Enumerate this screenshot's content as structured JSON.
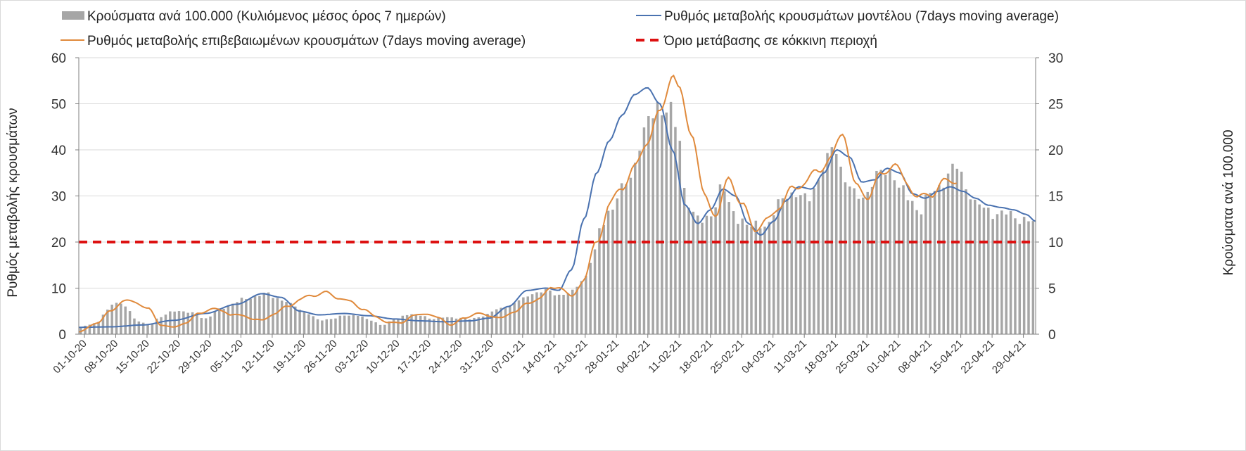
{
  "chart_data": {
    "type": "bar+line",
    "title": "",
    "legend": [
      {
        "key": "bars",
        "label": "Κρούσματα ανά 100.000 (Κυλιόμενος μέσος όρος 7 ημερών)",
        "color": "#a6a6a6"
      },
      {
        "key": "model",
        "label": "Ρυθμός μεταβολής κρουσμάτων μοντέλου (7days moving average)",
        "color": "#4a72b0"
      },
      {
        "key": "confirmed",
        "label": "Ρυθμός μεταβολής επιβεβαιωμένων κρουσμάτων (7days moving average)",
        "color": "#e08a3c"
      },
      {
        "key": "threshold",
        "label": "Όριο μετάβασης σε κόκκινη περιοχή",
        "color": "#dd1111"
      }
    ],
    "legend_placement": "top",
    "ylabel_left": "Ρυθμός μεταβολής κρουσμάτων",
    "ylabel_right": "Κρούσματα ανά 100.000",
    "ylim_left": [
      0,
      60
    ],
    "yticks_left": [
      "0",
      "10",
      "20",
      "30",
      "40",
      "50",
      "60"
    ],
    "ylim_right": [
      0,
      30
    ],
    "yticks_right": [
      "0",
      "5",
      "10",
      "15",
      "20",
      "25",
      "30"
    ],
    "grid": true,
    "x_tick_labels": [
      "01-10-20",
      "08-10-20",
      "15-10-20",
      "22-10-20",
      "29-10-20",
      "05-11-20",
      "12-11-20",
      "19-11-20",
      "26-11-20",
      "03-12-20",
      "10-12-20",
      "17-12-20",
      "24-12-20",
      "31-12-20",
      "07-01-21",
      "14-01-21",
      "21-01-21",
      "28-01-21",
      "04-02-21",
      "11-02-21",
      "18-02-21",
      "25-02-21",
      "04-03-21",
      "11-03-21",
      "18-03-21",
      "25-03-21",
      "01-04-21",
      "08-04-21",
      "15-04-21",
      "22-04-21",
      "29-04-21"
    ],
    "day_count": 214,
    "threshold_left": 20,
    "anchors_bars_right": [
      [
        0,
        0.8
      ],
      [
        5,
        1.2
      ],
      [
        8,
        2.5
      ],
      [
        11,
        3.4
      ],
      [
        14,
        3.2
      ],
      [
        18,
        1.4
      ],
      [
        22,
        1.0
      ],
      [
        25,
        1.8
      ],
      [
        30,
        2.6
      ],
      [
        35,
        2.3
      ],
      [
        40,
        1.7
      ],
      [
        44,
        2.7
      ],
      [
        48,
        3.3
      ],
      [
        52,
        3.8
      ],
      [
        56,
        4.2
      ],
      [
        59,
        4.4
      ],
      [
        62,
        4.0
      ],
      [
        65,
        3.6
      ],
      [
        68,
        3.0
      ],
      [
        72,
        2.3
      ],
      [
        76,
        1.5
      ],
      [
        80,
        1.7
      ],
      [
        84,
        2.0
      ],
      [
        88,
        2.1
      ],
      [
        92,
        1.5
      ],
      [
        96,
        1.0
      ],
      [
        100,
        1.6
      ],
      [
        104,
        2.2
      ],
      [
        108,
        2.0
      ],
      [
        112,
        1.7
      ],
      [
        116,
        1.8
      ],
      [
        120,
        1.8
      ],
      [
        124,
        1.6
      ],
      [
        128,
        2.0
      ],
      [
        132,
        2.6
      ],
      [
        136,
        3.1
      ],
      [
        140,
        3.7
      ],
      [
        144,
        4.5
      ],
      [
        148,
        4.7
      ],
      [
        152,
        4.3
      ],
      [
        156,
        4.5
      ],
      [
        160,
        6.0
      ],
      [
        163,
        8.5
      ],
      [
        166,
        12.0
      ],
      [
        169,
        14.0
      ],
      [
        172,
        15.5
      ],
      [
        175,
        17.0
      ],
      [
        178,
        21.0
      ],
      [
        181,
        23.0
      ],
      [
        184,
        25.0
      ],
      [
        187,
        24.5
      ],
      [
        190,
        22.0
      ],
      [
        192,
        16.0
      ],
      [
        195,
        13.0
      ],
      [
        198,
        12.0
      ],
      [
        201,
        13.5
      ],
      [
        204,
        16.0
      ],
      [
        207,
        13.5
      ],
      [
        210,
        12.5
      ],
      [
        213,
        11.5
      ],
      [
        216,
        12.0
      ],
      [
        219,
        12.0
      ],
      [
        222,
        14.0
      ],
      [
        225,
        15.5
      ],
      [
        228,
        15.0
      ],
      [
        231,
        14.5
      ],
      [
        234,
        16.5
      ],
      [
        237,
        18.5
      ],
      [
        240,
        20.5
      ],
      [
        243,
        17.0
      ],
      [
        246,
        15.0
      ],
      [
        249,
        15.0
      ],
      [
        252,
        16.5
      ],
      [
        255,
        17.5
      ],
      [
        258,
        18.0
      ],
      [
        261,
        15.5
      ],
      [
        264,
        14.5
      ],
      [
        267,
        13.5
      ],
      [
        270,
        15.0
      ],
      [
        273,
        16.0
      ],
      [
        276,
        17.5
      ],
      [
        279,
        18.0
      ],
      [
        282,
        16.0
      ],
      [
        285,
        14.0
      ],
      [
        288,
        13.5
      ],
      [
        291,
        13.2
      ],
      [
        294,
        13.0
      ],
      [
        297,
        12.8
      ],
      [
        300,
        12.5
      ],
      [
        303,
        12.0
      ]
    ],
    "anchors_model_left": [
      [
        0,
        1.5
      ],
      [
        10,
        1.6
      ],
      [
        20,
        2.0
      ],
      [
        30,
        3.0
      ],
      [
        40,
        4.5
      ],
      [
        50,
        6.5
      ],
      [
        58,
        8.8
      ],
      [
        64,
        8.0
      ],
      [
        70,
        5.0
      ],
      [
        76,
        4.2
      ],
      [
        84,
        4.5
      ],
      [
        92,
        4.0
      ],
      [
        100,
        3.3
      ],
      [
        108,
        2.9
      ],
      [
        116,
        2.7
      ],
      [
        124,
        2.9
      ],
      [
        130,
        3.5
      ],
      [
        136,
        6.0
      ],
      [
        142,
        9.5
      ],
      [
        148,
        10.0
      ],
      [
        152,
        9.5
      ],
      [
        156,
        14.0
      ],
      [
        160,
        25.0
      ],
      [
        164,
        35.0
      ],
      [
        168,
        42.0
      ],
      [
        172,
        47.5
      ],
      [
        176,
        52.0
      ],
      [
        180,
        53.5
      ],
      [
        184,
        50.0
      ],
      [
        188,
        40.0
      ],
      [
        192,
        28.0
      ],
      [
        196,
        24.0
      ],
      [
        200,
        27.0
      ],
      [
        204,
        31.5
      ],
      [
        208,
        30.0
      ],
      [
        212,
        24.0
      ],
      [
        216,
        21.5
      ],
      [
        220,
        24.5
      ],
      [
        224,
        29.0
      ],
      [
        228,
        32.0
      ],
      [
        232,
        31.5
      ],
      [
        236,
        35.0
      ],
      [
        240,
        40.0
      ],
      [
        244,
        38.5
      ],
      [
        248,
        33.0
      ],
      [
        252,
        33.5
      ],
      [
        256,
        36.0
      ],
      [
        260,
        35.0
      ],
      [
        264,
        30.5
      ],
      [
        268,
        29.5
      ],
      [
        272,
        31.0
      ],
      [
        276,
        32.0
      ],
      [
        280,
        31.0
      ],
      [
        284,
        29.5
      ],
      [
        288,
        28.0
      ],
      [
        292,
        27.5
      ],
      [
        296,
        27.0
      ],
      [
        300,
        26.0
      ],
      [
        303,
        24.5
      ]
    ],
    "anchors_confirmed_left": [
      [
        0,
        0.5
      ],
      [
        6,
        2.5
      ],
      [
        10,
        5.0
      ],
      [
        14,
        7.2
      ],
      [
        18,
        7.0
      ],
      [
        22,
        5.5
      ],
      [
        26,
        2.0
      ],
      [
        30,
        1.5
      ],
      [
        34,
        2.5
      ],
      [
        38,
        4.5
      ],
      [
        42,
        5.5
      ],
      [
        46,
        5.0
      ],
      [
        48,
        4.3
      ],
      [
        52,
        4.0
      ],
      [
        56,
        3.2
      ],
      [
        58,
        3.0
      ],
      [
        62,
        4.5
      ],
      [
        66,
        6.0
      ],
      [
        70,
        7.5
      ],
      [
        74,
        8.5
      ],
      [
        78,
        9.0
      ],
      [
        82,
        8.0
      ],
      [
        86,
        7.0
      ],
      [
        90,
        5.5
      ],
      [
        94,
        3.8
      ],
      [
        98,
        2.5
      ],
      [
        102,
        2.5
      ],
      [
        106,
        4.0
      ],
      [
        110,
        4.5
      ],
      [
        114,
        3.5
      ],
      [
        118,
        2.0
      ],
      [
        122,
        3.5
      ],
      [
        126,
        4.5
      ],
      [
        130,
        4.0
      ],
      [
        134,
        3.5
      ],
      [
        138,
        5.0
      ],
      [
        142,
        6.5
      ],
      [
        146,
        8.0
      ],
      [
        150,
        10.0
      ],
      [
        152,
        10.5
      ],
      [
        156,
        8.0
      ],
      [
        160,
        12.0
      ],
      [
        164,
        20.0
      ],
      [
        168,
        28.0
      ],
      [
        172,
        32.0
      ],
      [
        176,
        36.0
      ],
      [
        180,
        42.0
      ],
      [
        184,
        48.0
      ],
      [
        188,
        56.5
      ],
      [
        190,
        53.0
      ],
      [
        194,
        44.0
      ],
      [
        198,
        30.0
      ],
      [
        202,
        26.0
      ],
      [
        206,
        34.0
      ],
      [
        210,
        28.0
      ],
      [
        214,
        23.0
      ],
      [
        218,
        24.5
      ],
      [
        222,
        28.0
      ],
      [
        226,
        31.5
      ],
      [
        230,
        33.0
      ],
      [
        234,
        35.5
      ],
      [
        238,
        38.0
      ],
      [
        242,
        44.0
      ],
      [
        246,
        32.0
      ],
      [
        250,
        30.0
      ],
      [
        254,
        34.5
      ],
      [
        258,
        37.0
      ],
      [
        262,
        33.0
      ],
      [
        266,
        29.5
      ],
      [
        270,
        30.5
      ],
      [
        274,
        33.0
      ],
      [
        278,
        33.5
      ]
    ],
    "day_span_model": 303,
    "day_span_confirmed": 278
  }
}
